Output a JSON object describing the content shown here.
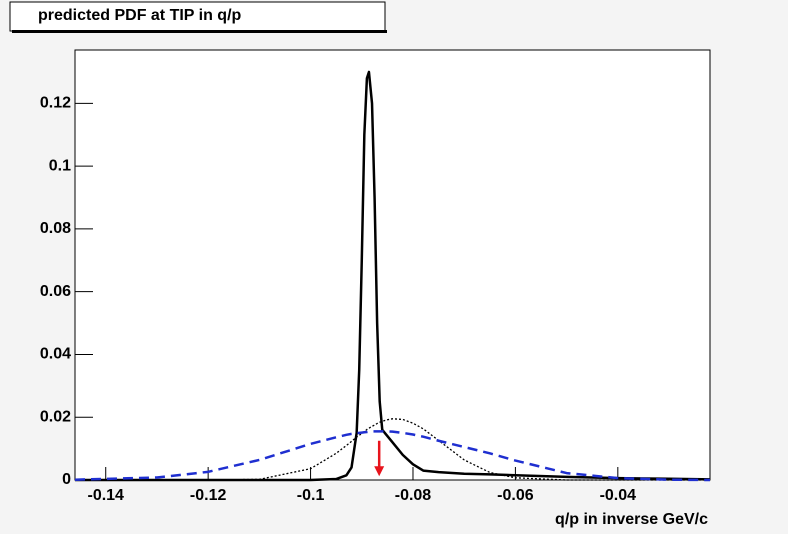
{
  "chart_data": {
    "type": "line",
    "title": "predicted PDF at TIP in q/p",
    "x_label": "q/p in inverse GeV/c",
    "x": [
      -0.146,
      -0.13,
      -0.12,
      -0.11,
      -0.1,
      -0.095,
      -0.093,
      -0.092,
      -0.091,
      -0.0905,
      -0.09,
      -0.0895,
      -0.089,
      -0.0886,
      -0.088,
      -0.0875,
      -0.087,
      -0.0865,
      -0.086,
      -0.085,
      -0.084,
      -0.082,
      -0.08,
      -0.078,
      -0.075,
      -0.07,
      -0.065,
      -0.06,
      -0.05,
      -0.04,
      -0.03,
      -0.022
    ],
    "series": [
      {
        "color": "#000000",
        "style": "solid",
        "width": 2.5,
        "values": [
          0,
          0,
          0,
          0,
          0,
          0.0003,
          0.0015,
          0.004,
          0.015,
          0.035,
          0.07,
          0.11,
          0.128,
          0.13,
          0.12,
          0.09,
          0.05,
          0.025,
          0.016,
          0.014,
          0.012,
          0.008,
          0.005,
          0.003,
          0.0025,
          0.002,
          0.0018,
          0.0015,
          0.001,
          0.0006,
          0.0004,
          0.0002
        ]
      },
      {
        "color": "#000000",
        "style": "dotted",
        "width": 1.3,
        "values": [
          0,
          0,
          0,
          0.0002,
          0.0036,
          0.0085,
          0.011,
          0.0123,
          0.0137,
          0.0142,
          0.0149,
          0.0154,
          0.0161,
          0.0165,
          0.0171,
          0.0175,
          0.018,
          0.0184,
          0.0187,
          0.0192,
          0.0195,
          0.0193,
          0.0181,
          0.0163,
          0.0126,
          0.0064,
          0.0024,
          0.0007,
          0,
          0,
          0,
          0
        ]
      },
      {
        "color": "#1f2fd0",
        "style": "dashed",
        "width": 2.5,
        "values": [
          0.0001,
          0.0008,
          0.0026,
          0.0064,
          0.0115,
          0.0136,
          0.0144,
          0.0147,
          0.0149,
          0.015,
          0.0151,
          0.0152,
          0.0153,
          0.0154,
          0.0155,
          0.0155,
          0.0155,
          0.0155,
          0.0155,
          0.0155,
          0.0154,
          0.015,
          0.0145,
          0.0138,
          0.0125,
          0.0105,
          0.0085,
          0.0062,
          0.0022,
          0.0006,
          0.0001,
          0
        ]
      }
    ],
    "marker": {
      "x": -0.0866,
      "y_top": 0.0125,
      "y_bottom": 0.0012,
      "color": "#e8141c"
    },
    "xlim": [
      -0.146,
      -0.022
    ],
    "xticks": [
      -0.14,
      -0.12,
      -0.1,
      -0.08,
      -0.06,
      -0.04
    ],
    "ylim": [
      0,
      0.137
    ],
    "yticks": [
      0,
      0.02,
      0.04,
      0.06,
      0.08,
      0.1,
      0.12
    ]
  }
}
